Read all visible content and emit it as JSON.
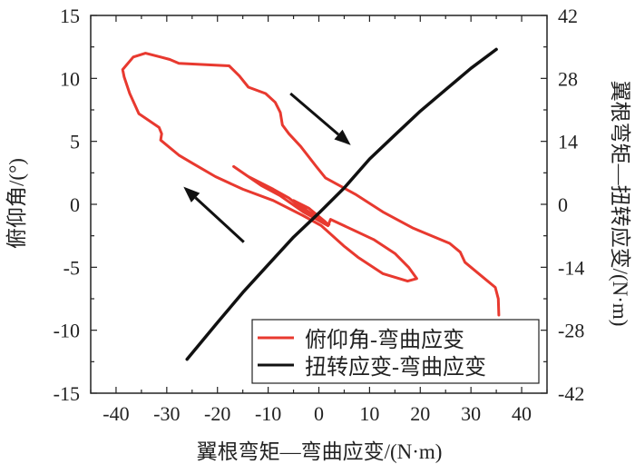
{
  "chart_data": {
    "type": "line",
    "xlabel": "翼根弯矩—弯曲应变/(N·m)",
    "ylabel": "俯仰角/(°)",
    "y2label": "翼根弯矩—扭转应变/(N·m)",
    "xlim": [
      -45,
      45
    ],
    "ylim": [
      -15,
      15
    ],
    "y2lim": [
      -42,
      42
    ],
    "xticks": [
      -40,
      -30,
      -20,
      -10,
      0,
      10,
      20,
      30,
      40
    ],
    "yticks": [
      -15,
      -10,
      -5,
      0,
      5,
      10,
      15
    ],
    "y2ticks": [
      -42,
      -28,
      -14,
      0,
      14,
      28,
      42
    ],
    "legend_position": "bottom-right",
    "colors": {
      "red": "#e8392f",
      "black": "#111111"
    },
    "series": [
      {
        "name": "俯仰角-弯曲应变",
        "color": "#e8392f",
        "points": [
          [
            35.5,
            -8.8
          ],
          [
            35.4,
            -7.5
          ],
          [
            34.8,
            -6.6
          ],
          [
            33,
            -6
          ],
          [
            28.8,
            -4.6
          ],
          [
            27.9,
            -3.8
          ],
          [
            25.8,
            -3.1
          ],
          [
            18.6,
            -1.9
          ],
          [
            12.6,
            -0.6
          ],
          [
            7.2,
            0.8
          ],
          [
            1.3,
            2.1
          ],
          [
            -0.5,
            3.0
          ],
          [
            -3.6,
            4.6
          ],
          [
            -5.9,
            5.6
          ],
          [
            -7.2,
            6.3
          ],
          [
            -7.6,
            7.3
          ],
          [
            -8.6,
            8.1
          ],
          [
            -10.5,
            8.8
          ],
          [
            -13.9,
            9.3
          ],
          [
            -15.7,
            10.2
          ],
          [
            -17.7,
            11.0
          ],
          [
            -27.6,
            11.2
          ],
          [
            -29.4,
            11.5
          ],
          [
            -31.2,
            11.7
          ],
          [
            -34.2,
            12.0
          ],
          [
            -36.6,
            11.7
          ],
          [
            -38.7,
            10.7
          ],
          [
            -38.4,
            10.1
          ],
          [
            -37.3,
            8.8
          ],
          [
            -35.5,
            7.2
          ],
          [
            -31.5,
            6.1
          ],
          [
            -31,
            5.6
          ],
          [
            -31.2,
            5.1
          ],
          [
            -27.6,
            3.9
          ],
          [
            -24.7,
            3.2
          ],
          [
            -20.4,
            2.2
          ],
          [
            -15,
            1.2
          ],
          [
            -9,
            0.3
          ],
          [
            -3.1,
            -0.9
          ],
          [
            0.5,
            -1.7
          ],
          [
            4.9,
            -3.3
          ],
          [
            7.7,
            -4.2
          ],
          [
            12.6,
            -5.5
          ],
          [
            17.5,
            -6.1
          ],
          [
            19.3,
            -5.9
          ],
          [
            17.7,
            -5.0
          ],
          [
            15,
            -3.9
          ],
          [
            10.8,
            -2.8
          ],
          [
            2.3,
            -1.2
          ],
          [
            1.8,
            -1.7
          ],
          [
            -3.1,
            -0.6
          ],
          [
            -7.7,
            0.7
          ],
          [
            -11.4,
            1.5
          ],
          [
            -16.8,
            3.0
          ],
          [
            -13.9,
            2.2
          ],
          [
            -9,
            1.2
          ],
          [
            -5.9,
            0.5
          ],
          [
            -3.1,
            -0.4
          ],
          [
            1.3,
            -1.4
          ],
          [
            -2,
            -0.3
          ],
          [
            -5,
            0.3
          ],
          [
            -1,
            -0.9
          ],
          [
            2,
            -1.6
          ]
        ]
      },
      {
        "name": "扭转应变-弯曲应变",
        "color": "#111111",
        "points": [
          [
            -26,
            -12.3
          ],
          [
            -20,
            -9.4
          ],
          [
            -15,
            -7.0
          ],
          [
            -10,
            -4.8
          ],
          [
            -5,
            -2.6
          ],
          [
            0,
            -0.7
          ],
          [
            5,
            1.3
          ],
          [
            10,
            3.6
          ],
          [
            15,
            5.5
          ],
          [
            20,
            7.4
          ],
          [
            25,
            9.1
          ],
          [
            30,
            10.8
          ],
          [
            35,
            12.3
          ]
        ]
      }
    ],
    "arrows": [
      {
        "from": [
          -5.6,
          8.8
        ],
        "to": [
          6.3,
          4.7
        ]
      },
      {
        "from": [
          -14.8,
          -3.0
        ],
        "to": [
          -26.7,
          1.4
        ]
      }
    ]
  }
}
